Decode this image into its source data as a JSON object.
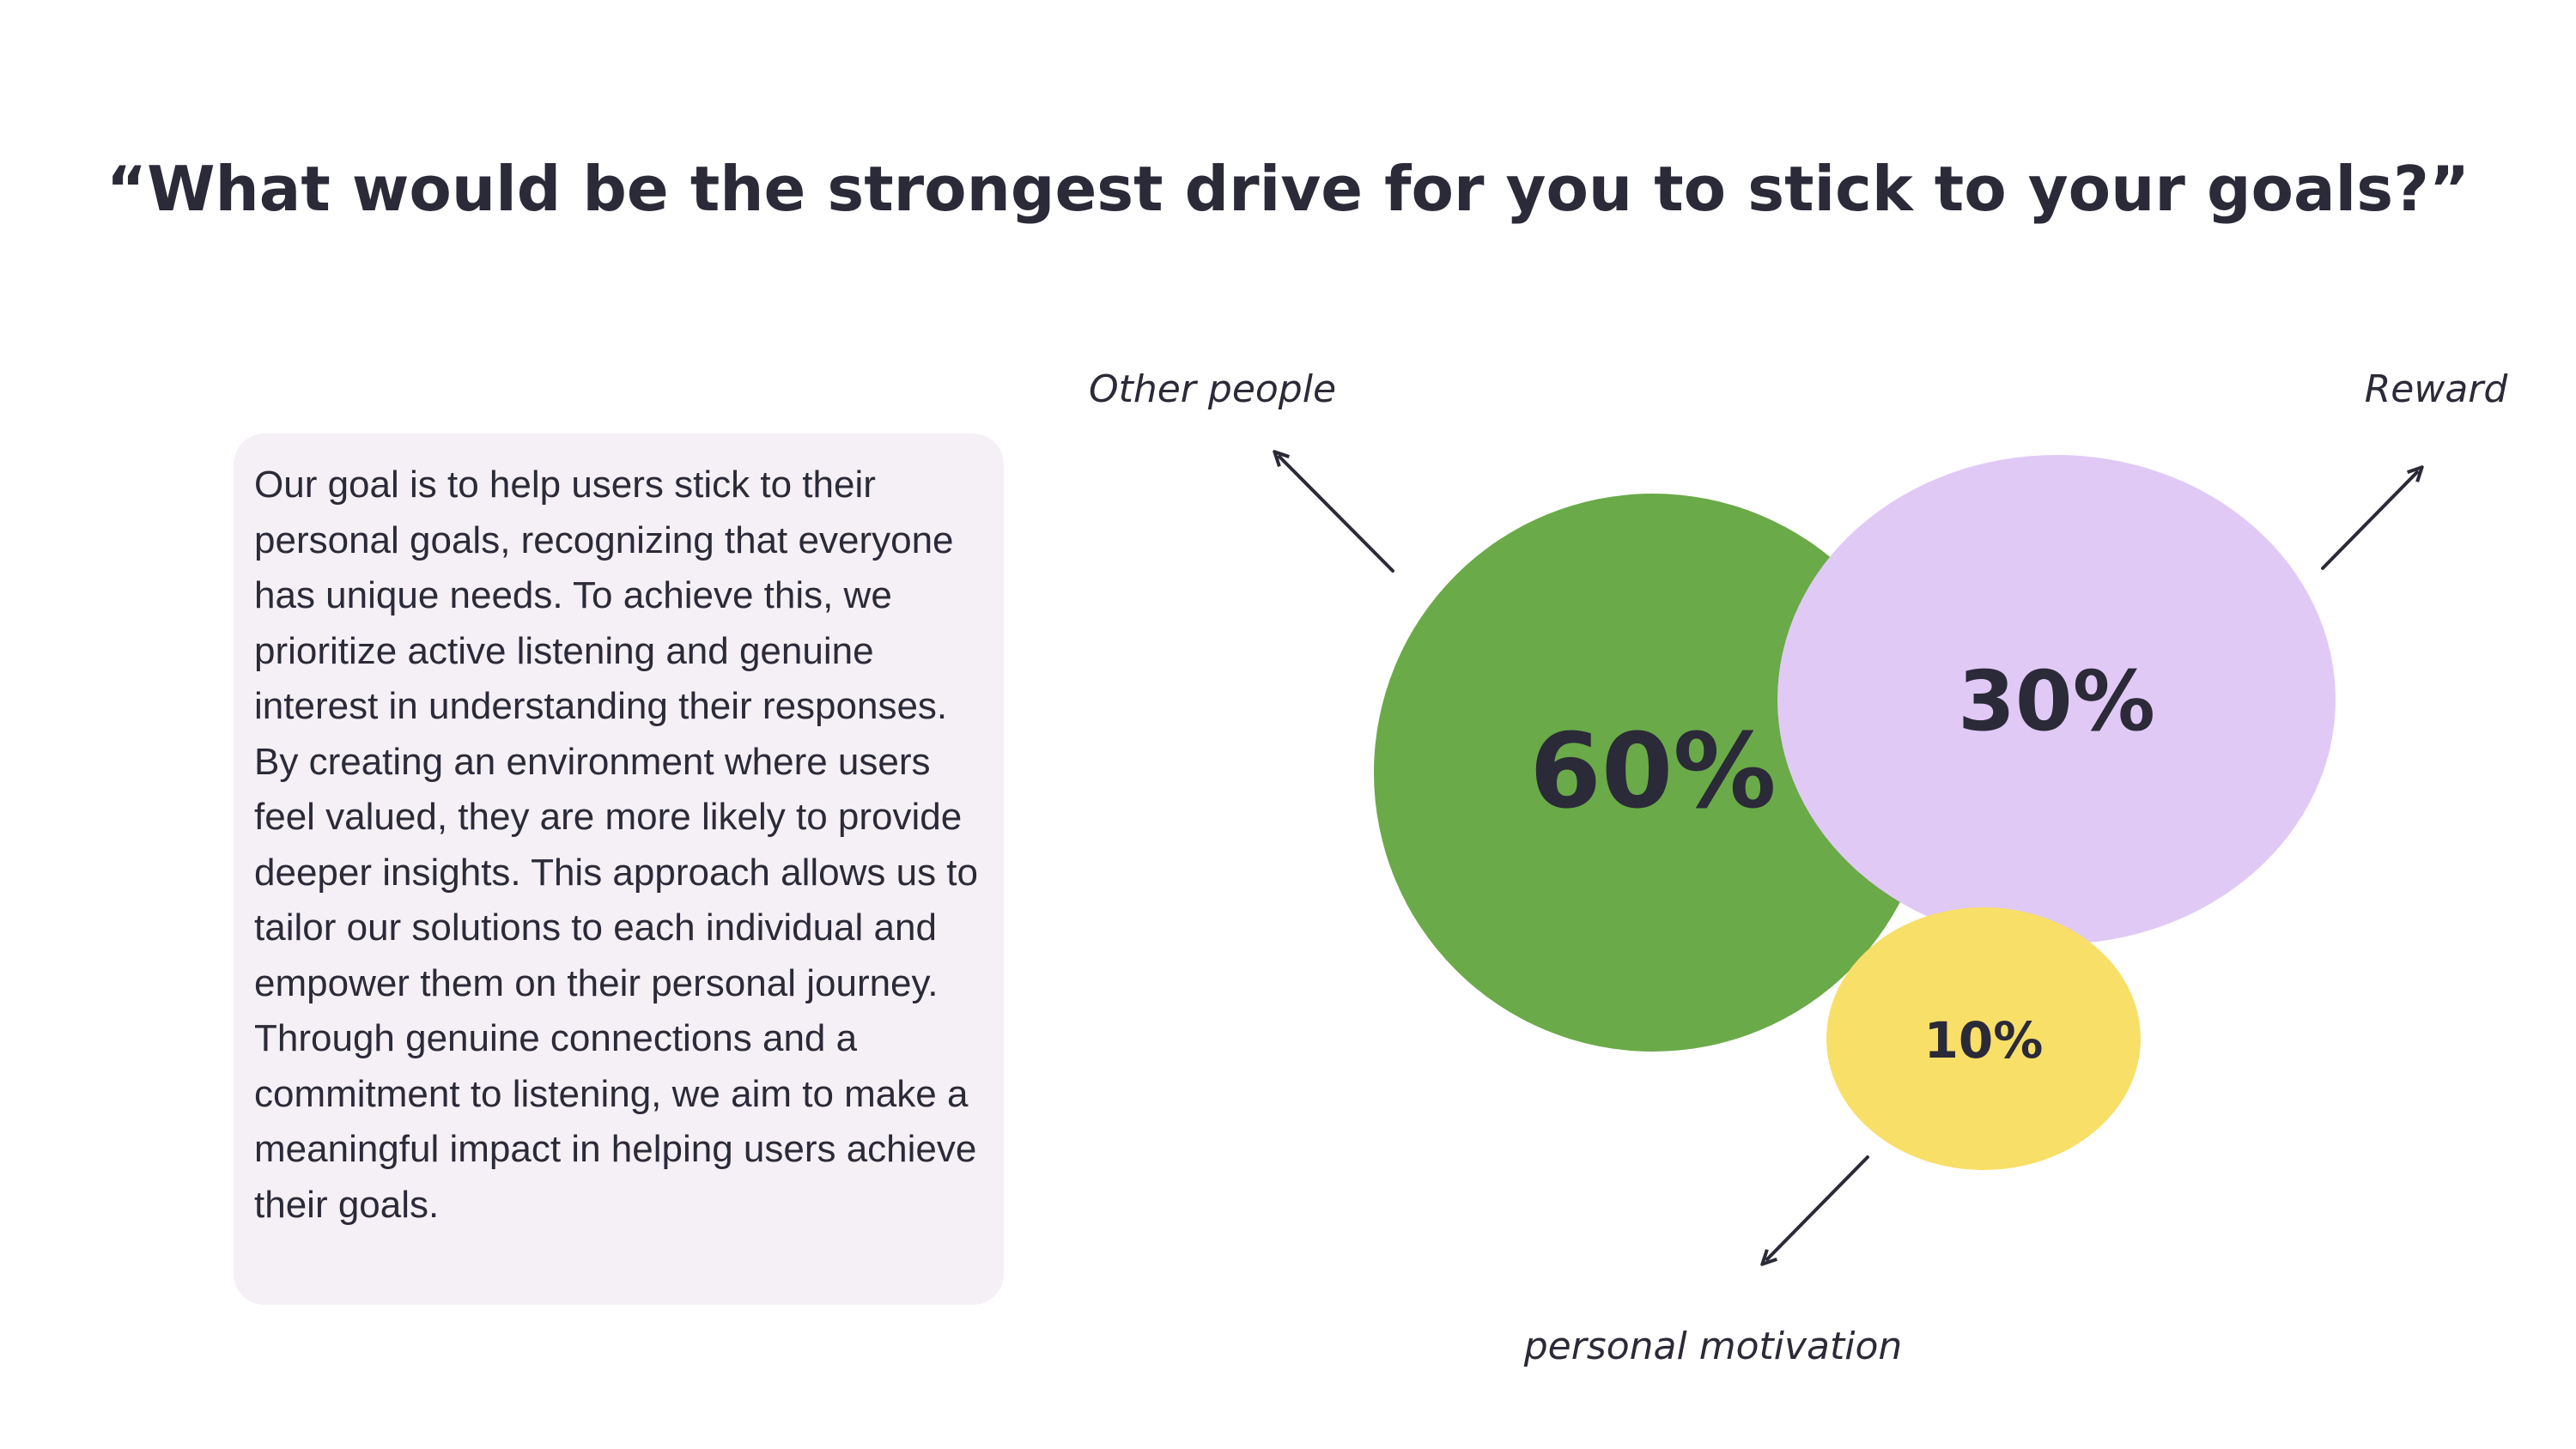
{
  "slide": {
    "title": "“What would be the strongest drive for you to stick to your goals?”",
    "body": "Our goal is to help users stick to their personal goals, recognizing that everyone has unique needs. To achieve this, we prioritize active listening and genuine interest in understanding their responses. By creating an environment where users feel valued, they are more likely to provide deeper insights. This approach allows us to tailor our solutions to each individual and empower them on their personal journey. Through genuine connections and a commitment to listening, we aim to make a meaningful impact in helping users achieve their goals."
  },
  "chart_data": {
    "type": "bubble",
    "categories": [
      "Other people",
      "Reward",
      "personal motivation"
    ],
    "values": [
      60,
      30,
      10
    ],
    "value_labels": [
      "60%",
      "30%",
      "10%"
    ],
    "colors": [
      "#6aaa48",
      "#e1c9f6",
      "#f8df68"
    ],
    "title": "",
    "legend": "none"
  }
}
